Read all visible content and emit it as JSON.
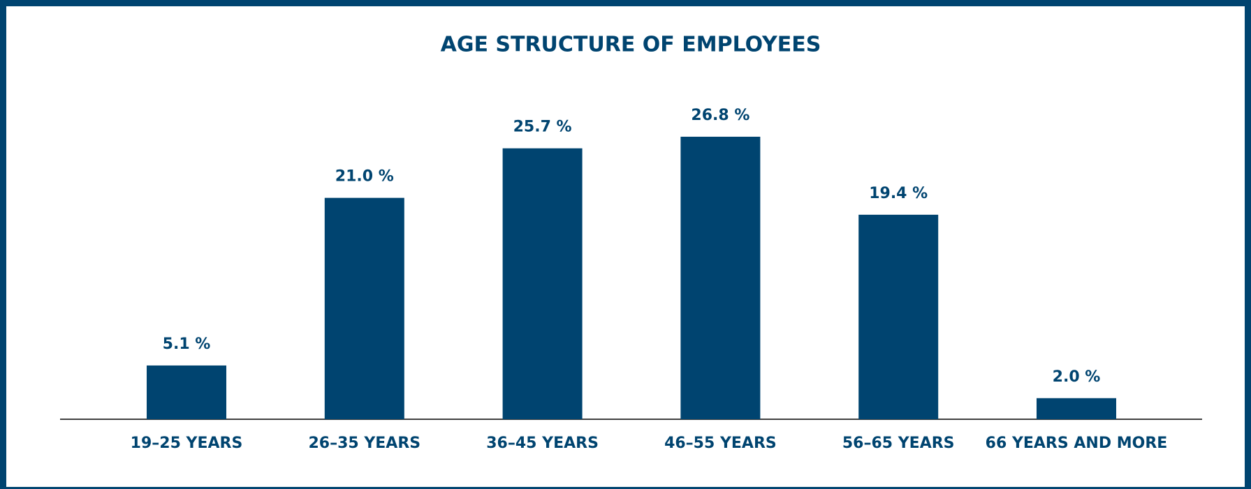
{
  "chart_data": {
    "type": "bar",
    "title": "AGE STRUCTURE OF EMPLOYEES",
    "categories": [
      "19–25 YEARS",
      "26–35 YEARS",
      "36–45 YEARS",
      "46–55 YEARS",
      "56–65 YEARS",
      "66 YEARS AND MORE"
    ],
    "values": [
      5.1,
      21.0,
      25.7,
      26.8,
      19.4,
      2.0
    ],
    "value_labels": [
      "5.1 %",
      "21.0 %",
      "25.7 %",
      "26.8 %",
      "19.4 %",
      "2.0 %"
    ],
    "color": "#004470"
  }
}
